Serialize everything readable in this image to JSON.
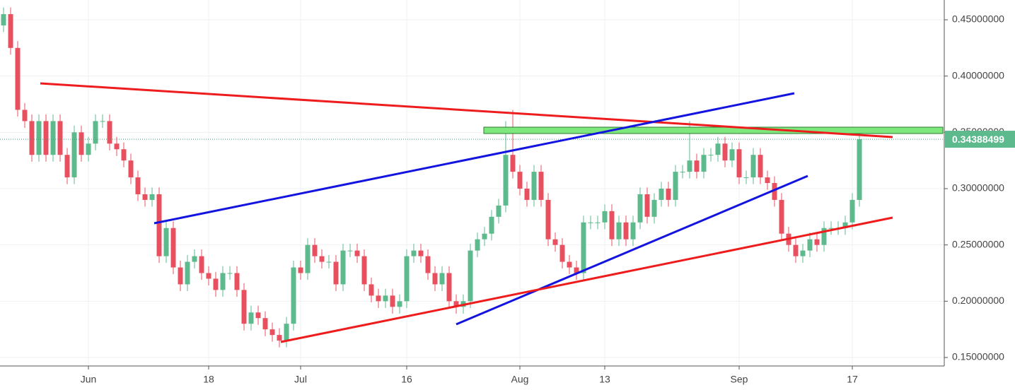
{
  "chart_data": {
    "type": "candlestick",
    "categories": [
      null,
      null,
      null,
      null,
      null,
      null,
      null,
      null,
      null,
      null,
      null,
      null,
      "Jun",
      null,
      null,
      null,
      null,
      null,
      null,
      null,
      null,
      null,
      null,
      null,
      null,
      null,
      null,
      null,
      null,
      "18",
      null,
      null,
      null,
      null,
      null,
      null,
      null,
      null,
      null,
      null,
      null,
      null,
      "Jul",
      null,
      null,
      null,
      null,
      null,
      null,
      null,
      null,
      null,
      null,
      null,
      null,
      null,
      null,
      "16",
      null,
      null,
      null,
      null,
      null,
      null,
      null,
      null,
      null,
      null,
      null,
      null,
      null,
      null,
      null,
      "Aug",
      null,
      null,
      null,
      null,
      null,
      null,
      null,
      null,
      null,
      null,
      null,
      "13",
      null,
      null,
      null,
      null,
      null,
      null,
      null,
      null,
      null,
      null,
      null,
      null,
      null,
      null,
      null,
      null,
      null,
      null,
      "Sep",
      null,
      null,
      null,
      null,
      null,
      null,
      null,
      null,
      null,
      null,
      null,
      null,
      null,
      null,
      null,
      "17",
      null
    ],
    "open": [
      0.445,
      0.455,
      0.425,
      0.37,
      0.36,
      0.33,
      0.36,
      0.33,
      0.36,
      0.33,
      0.31,
      0.35,
      0.33,
      0.34,
      0.36,
      0.36,
      0.34,
      0.335,
      0.325,
      0.31,
      0.295,
      0.29,
      0.295,
      0.24,
      0.265,
      0.23,
      0.215,
      0.235,
      0.24,
      0.225,
      0.22,
      0.21,
      0.225,
      0.225,
      0.21,
      0.18,
      0.19,
      0.185,
      0.175,
      0.17,
      0.165,
      0.18,
      0.23,
      0.225,
      0.25,
      0.24,
      0.235,
      0.235,
      0.215,
      0.245,
      0.245,
      0.24,
      0.215,
      0.205,
      0.2,
      0.205,
      0.195,
      0.2,
      0.24,
      0.245,
      0.24,
      0.225,
      0.215,
      0.225,
      0.2,
      0.195,
      0.2,
      0.245,
      0.255,
      0.26,
      0.275,
      0.285,
      0.33,
      0.315,
      0.3,
      0.29,
      0.315,
      0.29,
      0.255,
      0.25,
      0.235,
      0.23,
      0.225,
      0.27,
      0.27,
      0.27,
      0.28,
      0.255,
      0.27,
      0.255,
      0.27,
      0.295,
      0.275,
      0.29,
      0.3,
      0.29,
      0.315,
      0.315,
      0.325,
      0.315,
      0.33,
      0.33,
      0.34,
      0.325,
      0.335,
      0.31,
      0.31,
      0.33,
      0.31,
      0.305,
      0.29,
      0.26,
      0.25,
      0.24,
      0.245,
      0.255,
      0.25,
      0.265,
      0.265,
      0.265,
      0.27,
      0.29
    ],
    "high": [
      0.461,
      0.461,
      0.431,
      0.376,
      0.366,
      0.366,
      0.366,
      0.366,
      0.366,
      0.336,
      0.356,
      0.356,
      0.346,
      0.366,
      0.366,
      0.366,
      0.346,
      0.341,
      0.331,
      0.316,
      0.301,
      0.301,
      0.301,
      0.271,
      0.271,
      0.236,
      0.241,
      0.246,
      0.246,
      0.231,
      0.226,
      0.231,
      0.231,
      0.231,
      0.216,
      0.196,
      0.196,
      0.191,
      0.181,
      0.176,
      0.186,
      0.236,
      0.236,
      0.256,
      0.256,
      0.246,
      0.241,
      0.241,
      0.251,
      0.251,
      0.251,
      0.246,
      0.221,
      0.211,
      0.211,
      0.211,
      0.206,
      0.246,
      0.251,
      0.251,
      0.246,
      0.231,
      0.231,
      0.231,
      0.206,
      0.206,
      0.251,
      0.261,
      0.266,
      0.281,
      0.291,
      0.36,
      0.37,
      0.321,
      0.306,
      0.321,
      0.321,
      0.296,
      0.261,
      0.256,
      0.241,
      0.236,
      0.276,
      0.276,
      0.276,
      0.286,
      0.286,
      0.276,
      0.276,
      0.276,
      0.301,
      0.301,
      0.296,
      0.306,
      0.306,
      0.321,
      0.321,
      0.36,
      0.331,
      0.336,
      0.336,
      0.346,
      0.346,
      0.341,
      0.341,
      0.316,
      0.336,
      0.336,
      0.316,
      0.311,
      0.296,
      0.266,
      0.256,
      0.251,
      0.261,
      0.261,
      0.271,
      0.271,
      0.271,
      0.276,
      0.296,
      0.35
    ],
    "low": [
      0.439,
      0.419,
      0.364,
      0.354,
      0.324,
      0.324,
      0.324,
      0.324,
      0.324,
      0.304,
      0.304,
      0.324,
      0.324,
      0.334,
      0.354,
      0.334,
      0.329,
      0.319,
      0.304,
      0.289,
      0.284,
      0.284,
      0.234,
      0.234,
      0.224,
      0.209,
      0.209,
      0.229,
      0.219,
      0.214,
      0.204,
      0.204,
      0.219,
      0.204,
      0.174,
      0.174,
      0.179,
      0.169,
      0.164,
      0.159,
      0.159,
      0.174,
      0.219,
      0.219,
      0.234,
      0.229,
      0.229,
      0.209,
      0.209,
      0.239,
      0.234,
      0.209,
      0.199,
      0.194,
      0.194,
      0.189,
      0.189,
      0.194,
      0.234,
      0.234,
      0.219,
      0.209,
      0.209,
      0.194,
      0.189,
      0.189,
      0.194,
      0.239,
      0.249,
      0.254,
      0.269,
      0.279,
      0.309,
      0.294,
      0.284,
      0.284,
      0.284,
      0.249,
      0.244,
      0.229,
      0.224,
      0.219,
      0.219,
      0.264,
      0.264,
      0.264,
      0.249,
      0.249,
      0.249,
      0.249,
      0.264,
      0.269,
      0.269,
      0.284,
      0.284,
      0.284,
      0.309,
      0.309,
      0.309,
      0.309,
      0.324,
      0.324,
      0.319,
      0.319,
      0.304,
      0.304,
      0.304,
      0.304,
      0.299,
      0.284,
      0.254,
      0.244,
      0.234,
      0.234,
      0.239,
      0.244,
      0.244,
      0.259,
      0.259,
      0.259,
      0.264,
      0.284
    ],
    "close": [
      0.455,
      0.425,
      0.37,
      0.36,
      0.33,
      0.36,
      0.33,
      0.36,
      0.33,
      0.31,
      0.35,
      0.33,
      0.34,
      0.36,
      0.36,
      0.34,
      0.335,
      0.325,
      0.31,
      0.295,
      0.29,
      0.295,
      0.24,
      0.265,
      0.23,
      0.215,
      0.235,
      0.24,
      0.225,
      0.22,
      0.21,
      0.225,
      0.225,
      0.21,
      0.18,
      0.19,
      0.185,
      0.175,
      0.17,
      0.165,
      0.18,
      0.23,
      0.225,
      0.25,
      0.24,
      0.235,
      0.235,
      0.215,
      0.245,
      0.245,
      0.24,
      0.215,
      0.205,
      0.2,
      0.205,
      0.195,
      0.2,
      0.24,
      0.245,
      0.24,
      0.225,
      0.215,
      0.225,
      0.2,
      0.195,
      0.2,
      0.245,
      0.255,
      0.26,
      0.275,
      0.285,
      0.33,
      0.315,
      0.3,
      0.29,
      0.315,
      0.29,
      0.255,
      0.25,
      0.235,
      0.23,
      0.225,
      0.27,
      0.27,
      0.27,
      0.28,
      0.255,
      0.27,
      0.255,
      0.27,
      0.295,
      0.275,
      0.29,
      0.3,
      0.29,
      0.315,
      0.315,
      0.325,
      0.315,
      0.33,
      0.33,
      0.34,
      0.325,
      0.335,
      0.31,
      0.31,
      0.33,
      0.31,
      0.305,
      0.29,
      0.26,
      0.25,
      0.24,
      0.245,
      0.255,
      0.25,
      0.265,
      0.265,
      0.265,
      0.27,
      0.29,
      0.34388499
    ],
    "up_color": "#5cba8c",
    "down_color": "#e8505f",
    "ylim": [
      0.1425,
      0.4675
    ],
    "yticks": [
      {
        "value": 0.15,
        "label": "0.15000000"
      },
      {
        "value": 0.2,
        "label": "0.20000000"
      },
      {
        "value": 0.25,
        "label": "0.25000000"
      },
      {
        "value": 0.3,
        "label": "0.30000000"
      },
      {
        "value": 0.35,
        "label": "0.35000000"
      },
      {
        "value": 0.4,
        "label": "0.40000000"
      },
      {
        "value": 0.45,
        "label": "0.45000000"
      }
    ],
    "last_price": {
      "value": 0.34388499,
      "label": "0.34388499"
    },
    "grid": true
  }
}
